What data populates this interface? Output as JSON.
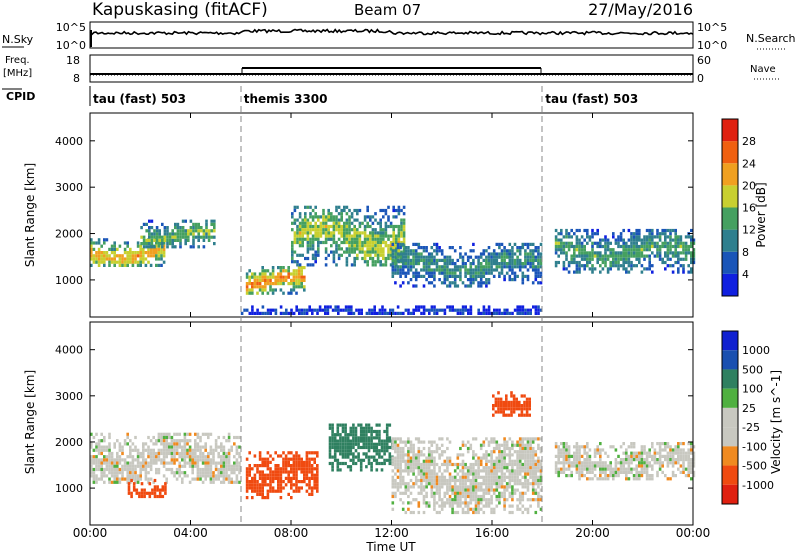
{
  "header": {
    "station": "Kapuskasing (fitACF)",
    "beam": "Beam 07",
    "date": "27/May/2016"
  },
  "nsky": {
    "label": "N.Sky",
    "tick_hi": "10^5",
    "tick_lo": "10^0",
    "right_label": "N.Search",
    "right_tick_hi": "10^5",
    "right_tick_lo": "10^0"
  },
  "freq": {
    "label_line1": "Freq.",
    "label_line2": "[MHz]",
    "tick_hi": "18",
    "tick_lo": "8",
    "right_label": "Nave",
    "right_tick_hi": "60",
    "right_tick_lo": "0"
  },
  "cpid": {
    "label": "CPID",
    "segments": [
      {
        "name": "tau (fast) 503",
        "start_h": 0,
        "end_h": 6
      },
      {
        "name": "themis 3300",
        "start_h": 6,
        "end_h": 18
      },
      {
        "name": "tau (fast) 503",
        "start_h": 18,
        "end_h": 24
      }
    ]
  },
  "colors": {
    "power": [
      "#1020e0",
      "#1a55b8",
      "#2f7f8e",
      "#45a060",
      "#c8d030",
      "#f0a020",
      "#f06010",
      "#e02010"
    ],
    "velocity": [
      "#e02010",
      "#f04a10",
      "#f08a20",
      "#c8c8c0",
      "#c8c8c0",
      "#50b040",
      "#2f8060",
      "#1a50b0",
      "#1020d0"
    ],
    "ground_scatter": "#bdbdb5"
  },
  "chart_data": [
    {
      "type": "heatmap",
      "title": "Power",
      "ylabel": "Slant Range [km]",
      "yticks": [
        "1000",
        "2000",
        "3000",
        "4000"
      ],
      "ylim": [
        200,
        4600
      ],
      "x_range_hours": [
        0,
        24
      ],
      "colorbar": {
        "label": "Power [dB]",
        "ticks": [
          "4",
          "8",
          "12",
          "16",
          "20",
          "24",
          "28"
        ],
        "range": [
          0,
          32
        ]
      },
      "bands": [
        {
          "from_h": 0.0,
          "to_h": 3.0,
          "range_km": [
            1300,
            1900
          ],
          "level": 22
        },
        {
          "from_h": 2.0,
          "to_h": 5.0,
          "range_km": [
            1700,
            2300
          ],
          "level": 16
        },
        {
          "from_h": 6.2,
          "to_h": 8.5,
          "range_km": [
            700,
            1300
          ],
          "level": 24
        },
        {
          "from_h": 8.0,
          "to_h": 12.5,
          "range_km": [
            1300,
            2600
          ],
          "level": 18
        },
        {
          "from_h": 12.0,
          "to_h": 18.0,
          "range_km": [
            900,
            1800
          ],
          "level": 12
        },
        {
          "from_h": 18.5,
          "to_h": 24.0,
          "range_km": [
            1200,
            2100
          ],
          "level": 14
        },
        {
          "from_h": 6.0,
          "to_h": 18.0,
          "range_km": [
            250,
            450
          ],
          "level": 4
        }
      ]
    },
    {
      "type": "heatmap",
      "title": "Velocity",
      "ylabel": "Slant Range [km]",
      "yticks": [
        "1000",
        "2000",
        "3000",
        "4000"
      ],
      "ylim": [
        200,
        4600
      ],
      "x_range_hours": [
        0,
        24
      ],
      "colorbar": {
        "label": "Velocity [m s^-1]",
        "ticks": [
          "1000",
          "500",
          "100",
          "25",
          "-25",
          "-100",
          "-500",
          "-1000"
        ]
      },
      "bands": [
        {
          "from_h": 0.0,
          "to_h": 6.0,
          "range_km": [
            1100,
            2200
          ],
          "velocity": 0
        },
        {
          "from_h": 1.5,
          "to_h": 3.0,
          "range_km": [
            800,
            1200
          ],
          "velocity": -300
        },
        {
          "from_h": 6.2,
          "to_h": 9.0,
          "range_km": [
            800,
            1800
          ],
          "velocity": -150
        },
        {
          "from_h": 9.5,
          "to_h": 12.0,
          "range_km": [
            1400,
            2400
          ],
          "velocity": 150
        },
        {
          "from_h": 12.0,
          "to_h": 18.0,
          "range_km": [
            500,
            2100
          ],
          "velocity": 0
        },
        {
          "from_h": 18.5,
          "to_h": 24.0,
          "range_km": [
            1200,
            2000
          ],
          "velocity": 0
        },
        {
          "from_h": 16.0,
          "to_h": 17.5,
          "range_km": [
            2600,
            3100
          ],
          "velocity": -200
        }
      ]
    }
  ],
  "xaxis": {
    "ticks": [
      "00:00",
      "04:00",
      "08:00",
      "12:00",
      "16:00",
      "20:00",
      "00:00"
    ],
    "label": "Time UT"
  }
}
